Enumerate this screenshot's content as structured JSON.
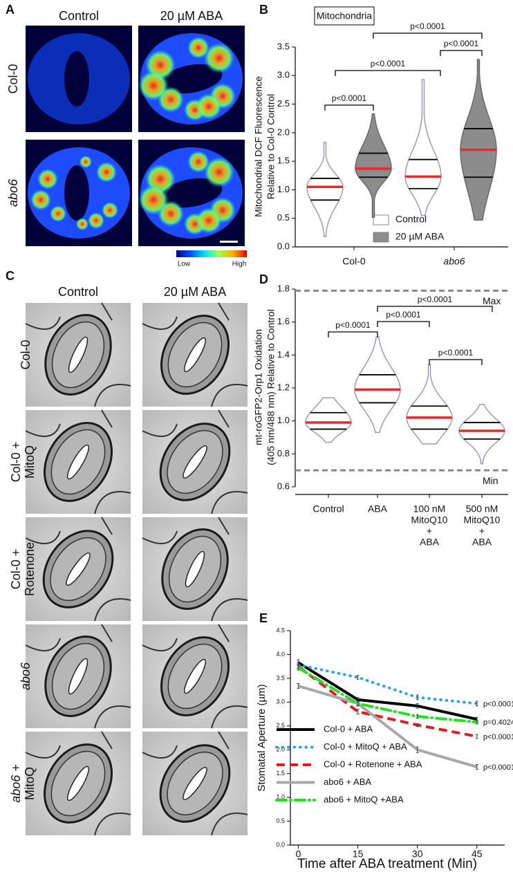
{
  "panel_a": {
    "letter": "A",
    "columns": [
      "Control",
      "20 µM ABA"
    ],
    "rows": [
      [
        "Col-0"
      ],
      [
        "abo6"
      ]
    ],
    "colorbar": [
      "Low",
      "High"
    ]
  },
  "panel_c": {
    "letter": "C",
    "columns": [
      "Control",
      "20 µM ABA"
    ],
    "rows": [
      [
        "Col-0"
      ],
      [
        "Col-0 +",
        "MitoQ"
      ],
      [
        "Col-0 +",
        "Rotenone"
      ],
      [
        "abo6"
      ],
      [
        "abo6 +",
        "MitoQ"
      ]
    ]
  },
  "chart_data": [
    {
      "type": "violin",
      "letter": "B",
      "title": "Mitochondria",
      "ylabel": [
        "Mitochondrial DCF Fluorescence",
        "Relative to Col-0 Control"
      ],
      "categories": [
        [
          "Col-0"
        ],
        [
          "abo6"
        ]
      ],
      "series": [
        {
          "name": "Control",
          "color": "#ffffff",
          "median": [
            1.05,
            1.23
          ],
          "q1": [
            0.82,
            1.02
          ],
          "q3": [
            1.2,
            1.53
          ],
          "min": [
            0.18,
            0.55
          ],
          "max": [
            1.83,
            2.93
          ]
        },
        {
          "name": "20 µM ABA",
          "color": "#8c8c8c",
          "median": [
            1.37,
            1.7
          ],
          "q1": [
            1.22,
            1.22
          ],
          "q3": [
            1.64,
            2.07
          ],
          "min": [
            0.52,
            0.47
          ],
          "max": [
            2.33,
            3.28
          ]
        }
      ],
      "ylim": [
        0,
        3.5
      ],
      "yticks": [
        {
          "value": 0,
          "label": "0.0"
        },
        0.5,
        {
          "value": 1,
          "label": "1.0"
        },
        1.5,
        {
          "value": 2,
          "label": "2.0"
        },
        2.5,
        {
          "value": 3,
          "label": "3.0"
        },
        3.5
      ],
      "annotations": [
        "p<0.0001",
        "p<0.0001",
        "p<0.0001",
        "p<0.0001"
      ]
    },
    {
      "type": "violin",
      "letter": "D",
      "ylabel": [
        "mt-roGFP2-Orp1 Oxidation",
        "(405 nm/488 nm) Relative to Control"
      ],
      "categories": [
        [
          "Control"
        ],
        [
          "ABA"
        ],
        [
          "100 nM",
          "MitoQ10",
          "+",
          "ABA"
        ],
        [
          "500 nM",
          "MitoQ10",
          "+",
          "ABA"
        ]
      ],
      "series": [
        {
          "color": "#ffffff",
          "median": [
            0.99,
            1.19,
            1.02,
            0.94
          ],
          "q1": [
            0.95,
            1.11,
            0.95,
            0.89
          ],
          "q3": [
            1.05,
            1.28,
            1.09,
            0.99
          ],
          "min": [
            0.87,
            0.93,
            0.86,
            0.74
          ],
          "max": [
            1.14,
            1.51,
            1.34,
            1.1
          ]
        }
      ],
      "ylim": [
        0.6,
        1.8
      ],
      "yticks": [
        0.6,
        0.8,
        {
          "value": 1,
          "label": "1.0"
        },
        1.2,
        1.4,
        1.6,
        1.8
      ],
      "reference_lines": [
        {
          "value": 1.79,
          "label": "Max"
        },
        {
          "value": 0.7,
          "label": "Min"
        }
      ],
      "annotations": [
        "p<0.0001",
        "p<0.0001",
        "p<0.0001",
        "p<0.0001"
      ]
    },
    {
      "type": "line",
      "letter": "E",
      "xlabel": "Time after ABA treatment (Min)",
      "ylabel": "Stomatal Aperture (µm)",
      "x": [
        0,
        15,
        30,
        45
      ],
      "xlim": [
        -2,
        52
      ],
      "xticks": [
        0,
        15,
        30,
        45
      ],
      "ylim": [
        0,
        4.5
      ],
      "yticks": [
        {
          "value": 0,
          "label": "0.0"
        },
        0.5,
        {
          "value": 1,
          "label": "1.0"
        },
        1.5,
        {
          "value": 2,
          "label": "2.0"
        },
        2.5,
        {
          "value": 3,
          "label": "3.0"
        },
        3.5,
        {
          "value": 4,
          "label": "4.0"
        },
        4.5
      ],
      "series": [
        {
          "name": "Col-0 + ABA",
          "color": "#000000",
          "style": "solid",
          "values": [
            3.83,
            3.05,
            2.92,
            2.64
          ],
          "errors": [
            0.06,
            0.05,
            0.05,
            0.04
          ]
        },
        {
          "name": "Col-0 + MitoQ + ABA",
          "color": "#1ea6e0",
          "style": "dotted",
          "values": [
            3.78,
            3.52,
            3.1,
            2.97
          ],
          "errors": [
            0.05,
            0.04,
            0.05,
            0.05
          ],
          "end_label": "p<0.0001"
        },
        {
          "name": "Col-0 + Rotenone + ABA",
          "color": "#e8171c",
          "style": "dashed",
          "values": [
            3.75,
            2.8,
            2.52,
            2.28
          ],
          "errors": [
            0.05,
            0.05,
            0.03,
            0.04
          ],
          "end_label": "p<0.0001"
        },
        {
          "name": "abo6 + ABA",
          "color": "#a8a8a8",
          "style": "solid",
          "values": [
            3.34,
            2.97,
            2.0,
            1.64
          ],
          "errors": [
            0.05,
            0.05,
            0.06,
            0.05
          ],
          "end_label": "p<0.0001"
        },
        {
          "name": "abo6 + MitoQ +ABA",
          "color": "#22e022",
          "style": "dashdot",
          "values": [
            3.72,
            2.97,
            2.7,
            2.58
          ],
          "errors": [
            0.05,
            0.04,
            0.04,
            0.04
          ],
          "end_label": "p=0.4024"
        }
      ]
    }
  ]
}
